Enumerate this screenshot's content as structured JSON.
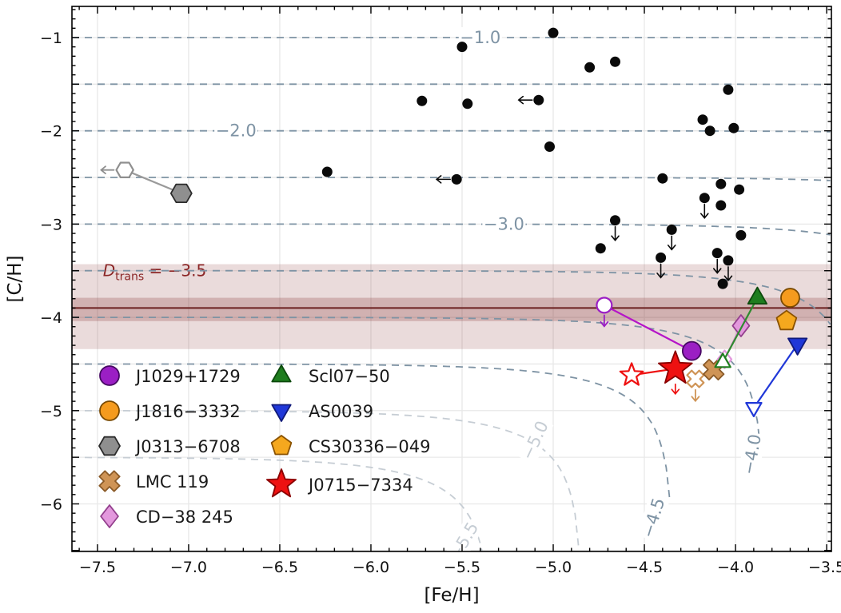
{
  "chart_data": {
    "type": "scatter",
    "title": "",
    "xlabel": "[Fe/H]",
    "ylabel": "[C/H]",
    "xlim": [
      -7.64,
      -3.474
    ],
    "ylim": [
      -6.51,
      -0.666
    ],
    "xticks": [
      -7.5,
      -7.0,
      -6.5,
      -6.0,
      -5.5,
      -5.0,
      -4.5,
      -4.0,
      -3.5
    ],
    "xtick_labels": [
      "−7.5",
      "−7.0",
      "−6.5",
      "−6.0",
      "−5.5",
      "−5.0",
      "−4.5",
      "−4.0",
      "−3.5"
    ],
    "yticks": [
      -1,
      -2,
      -3,
      -4,
      -5,
      -6
    ],
    "ytick_labels": [
      "−1",
      "−2",
      "−3",
      "−4",
      "−5",
      "−6"
    ],
    "grid": {
      "step": 0.5,
      "color": "#e8e8e8"
    },
    "contours": {
      "formula": "y = log10(10^level - 0.7*10^x)",
      "coeff": 0.7,
      "levels": [
        -1.0,
        -1.5,
        -2.0,
        -2.5,
        -3.0,
        -3.5,
        -4.0,
        -4.5,
        -5.0,
        -5.5
      ],
      "light_levels": [
        -5.0,
        -5.5
      ],
      "dark_color": "#7e93a4",
      "light_color": "#c6cdd4",
      "labels": [
        {
          "text": "−1.0",
          "x": -5.4,
          "y": -1.0,
          "rot": 0,
          "light": false
        },
        {
          "text": "−2.0",
          "x": -6.74,
          "y": -2.0,
          "rot": 0,
          "light": false
        },
        {
          "text": "−3.0",
          "x": -5.27,
          "y": -3.0,
          "rot": 0,
          "light": false
        },
        {
          "text": "−4.0",
          "x": -3.91,
          "y": -5.47,
          "rot": -80,
          "light": false
        },
        {
          "text": "−4.5",
          "x": -4.45,
          "y": -6.15,
          "rot": -73,
          "light": false
        },
        {
          "text": "−5.0",
          "x": -5.1,
          "y": -5.32,
          "rot": -65,
          "light": true
        },
        {
          "text": "−5.5",
          "x": -5.49,
          "y": -6.4,
          "rot": -60,
          "light": true
        }
      ]
    },
    "dtrans_band": {
      "label_D": "D",
      "label_sub": "trans",
      "label_rest": " = −3.5",
      "label_x": -7.47,
      "label_y": -3.56,
      "line_y": -3.9,
      "inner": [
        -4.04,
        -3.79
      ],
      "outer": [
        -4.34,
        -3.43
      ],
      "band_color": "#8b3a3a",
      "line_color": "#6b1f1f",
      "label_color": "#8b2525"
    },
    "field_stars": {
      "color": "#0a0a0a",
      "points": [
        {
          "x": -5.0,
          "y": -0.95
        },
        {
          "x": -4.8,
          "y": -1.32
        },
        {
          "x": -4.66,
          "y": -1.26
        },
        {
          "x": -5.5,
          "y": -1.1
        },
        {
          "x": -5.72,
          "y": -1.68
        },
        {
          "x": -5.47,
          "y": -1.71
        },
        {
          "x": -5.08,
          "y": -1.67,
          "lim": "left"
        },
        {
          "x": -4.04,
          "y": -1.56
        },
        {
          "x": -4.18,
          "y": -1.88
        },
        {
          "x": -4.14,
          "y": -2.0
        },
        {
          "x": -4.01,
          "y": -1.97
        },
        {
          "x": -5.02,
          "y": -2.17
        },
        {
          "x": -5.53,
          "y": -2.52,
          "lim": "left"
        },
        {
          "x": -6.24,
          "y": -2.44
        },
        {
          "x": -4.4,
          "y": -2.51
        },
        {
          "x": -4.08,
          "y": -2.57
        },
        {
          "x": -3.98,
          "y": -2.63
        },
        {
          "x": -4.17,
          "y": -2.72,
          "lim": "down"
        },
        {
          "x": -4.08,
          "y": -2.8
        },
        {
          "x": -4.66,
          "y": -2.96,
          "lim": "down"
        },
        {
          "x": -4.35,
          "y": -3.06,
          "lim": "down"
        },
        {
          "x": -3.97,
          "y": -3.12
        },
        {
          "x": -4.74,
          "y": -3.26
        },
        {
          "x": -4.41,
          "y": -3.36,
          "lim": "down"
        },
        {
          "x": -4.1,
          "y": -3.31,
          "lim": "down"
        },
        {
          "x": -4.04,
          "y": -3.39,
          "lim": "down"
        },
        {
          "x": -4.07,
          "y": -3.64
        }
      ]
    },
    "named_stars": [
      {
        "name": "J1029+1729",
        "marker": "circle",
        "fill": "#9b1fc4",
        "edge": "#470a63",
        "line_color": "#b515c8",
        "open": {
          "x": -4.72,
          "y": -3.87,
          "lim": "down"
        },
        "filled": {
          "x": -4.24,
          "y": -4.36
        }
      },
      {
        "name": "J1816−3332",
        "marker": "circle",
        "fill": "#f59b1e",
        "edge": "#7a4a00",
        "filled": {
          "x": -3.7,
          "y": -3.79
        }
      },
      {
        "name": "J0313−6708",
        "marker": "hexagon",
        "fill": "#8f8f8f",
        "edge": "#2b2b2b",
        "line_color": "#9a9a9a",
        "open": {
          "x": -7.35,
          "y": -2.42,
          "lim": "left"
        },
        "filled": {
          "x": -7.04,
          "y": -2.67
        }
      },
      {
        "name": "LMC 119",
        "marker": "x",
        "fill": "#cf9456",
        "edge": "#8a5a28",
        "line_color": "#cf9456",
        "open": {
          "x": -4.22,
          "y": -4.66,
          "lim": "down"
        },
        "filled": {
          "x": -4.12,
          "y": -4.56
        }
      },
      {
        "name": "CD−38 245",
        "marker": "diamond",
        "fill": "#e398dd",
        "edge": "#93408d",
        "line_color": "#d884d0",
        "open": {
          "x": -4.06,
          "y": -4.45
        },
        "filled": {
          "x": -3.97,
          "y": -4.09
        }
      },
      {
        "name": "Scl07−50",
        "marker": "triangle-up",
        "fill": "#1e7d1e",
        "edge": "#0c4a0c",
        "line_color": "#2e8b2e",
        "open": {
          "x": -4.07,
          "y": -4.48
        },
        "filled": {
          "x": -3.88,
          "y": -3.79
        }
      },
      {
        "name": "AS0039",
        "marker": "triangle-down",
        "fill": "#2038d8",
        "edge": "#101a7a",
        "line_color": "#2038d8",
        "open": {
          "x": -3.9,
          "y": -4.97
        },
        "filled": {
          "x": -3.66,
          "y": -4.29
        }
      },
      {
        "name": "CS30336−049",
        "marker": "pentagon",
        "fill": "#f5a81e",
        "edge": "#8a5200",
        "filled": {
          "x": -3.72,
          "y": -4.04
        }
      },
      {
        "name": "J0715−7334",
        "marker": "star",
        "fill": "#ee1111",
        "edge": "#8a0000",
        "line_color": "#ee1111",
        "big": true,
        "open": {
          "x": -4.57,
          "y": -4.62
        },
        "filled": {
          "x": -4.33,
          "y": -4.55,
          "lim": "down"
        }
      }
    ],
    "legend": {
      "columns": [
        [
          "J1029+1729",
          "J1816−3332",
          "J0313−6708",
          "LMC 119",
          "CD−38 245"
        ],
        [
          "Scl07−50",
          "AS0039",
          "CS30336−049",
          "J0715−7334"
        ]
      ],
      "text_color": "#1a1a1a"
    }
  }
}
